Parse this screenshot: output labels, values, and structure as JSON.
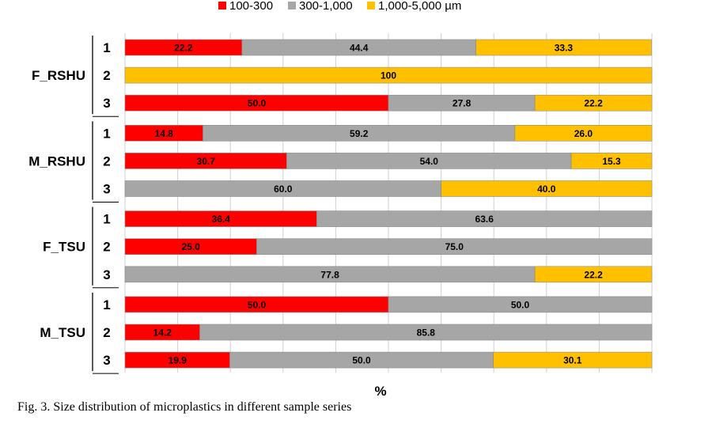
{
  "chart_data": {
    "type": "bar",
    "orientation": "horizontal",
    "stacked": "percent",
    "xlabel": "%",
    "xlim": [
      0,
      100
    ],
    "grid": true,
    "legend_position": "top",
    "groups": [
      {
        "label": "F_RSHU",
        "rows": [
          "1",
          "2",
          "3"
        ]
      },
      {
        "label": "M_RSHU",
        "rows": [
          "1",
          "2",
          "3"
        ]
      },
      {
        "label": "F_TSU",
        "rows": [
          "1",
          "2",
          "3"
        ]
      },
      {
        "label": "M_TSU",
        "rows": [
          "1",
          "2",
          "3"
        ]
      }
    ],
    "series": [
      {
        "name": "100-300",
        "color": "#ff0000",
        "values": [
          22.2,
          null,
          50.0,
          14.8,
          30.7,
          null,
          36.4,
          25.0,
          null,
          50.0,
          14.2,
          19.9
        ]
      },
      {
        "name": "300-1,000",
        "color": "#a6a6a6",
        "values": [
          44.4,
          null,
          27.8,
          59.2,
          54.0,
          60.0,
          63.6,
          75.0,
          77.8,
          50.0,
          85.8,
          50.0
        ]
      },
      {
        "name": "1,000-5,000 µm",
        "color": "#ffc000",
        "values": [
          33.3,
          100,
          22.2,
          26.0,
          15.3,
          40.0,
          null,
          null,
          22.2,
          null,
          null,
          30.1
        ]
      }
    ],
    "data_labels": [
      [
        "22.2",
        "44.4",
        "33.3"
      ],
      [
        null,
        null,
        "100"
      ],
      [
        "50.0",
        "27.8",
        "22.2"
      ],
      [
        "14.8",
        "59.2",
        "26.0"
      ],
      [
        "30.7",
        "54.0",
        "15.3"
      ],
      [
        null,
        "60.0",
        "40.0"
      ],
      [
        "36.4",
        "63.6",
        null
      ],
      [
        "25.0",
        "75.0",
        null
      ],
      [
        null,
        "77.8",
        "22.2"
      ],
      [
        "50.0",
        "50.0",
        null
      ],
      [
        "14.2",
        "85.8",
        null
      ],
      [
        "19.9",
        "50.0",
        "30.1"
      ]
    ]
  },
  "caption": "Fig. 3. Size distribution of microplastics in different sample series"
}
